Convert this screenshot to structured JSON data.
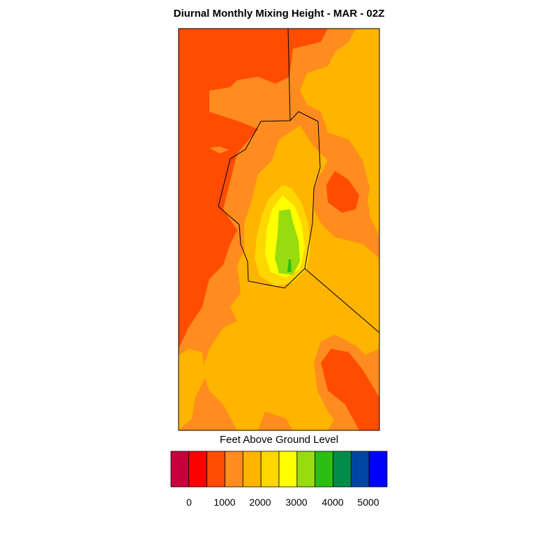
{
  "title": "Diurnal Monthly Mixing Height - MAR - 02Z",
  "colorbar": {
    "label": "Feet Above Ground Level",
    "colors": [
      "#c8003c",
      "#ff0000",
      "#ff4c00",
      "#ff8c1e",
      "#ffb400",
      "#ffd700",
      "#ffff00",
      "#96dc0f",
      "#2dbe14",
      "#008c46",
      "#0046a0",
      "#0000ff"
    ],
    "tick_labels": [
      "0",
      "1000",
      "2000",
      "3000",
      "4000",
      "5000"
    ]
  },
  "map_colors": {
    "red_orange": "#ff4c00",
    "orange": "#ff8c1e",
    "amber": "#ffb400",
    "gold": "#ffd700",
    "yellow": "#ffff00",
    "lime": "#96dc0f",
    "green": "#2dbe14"
  }
}
